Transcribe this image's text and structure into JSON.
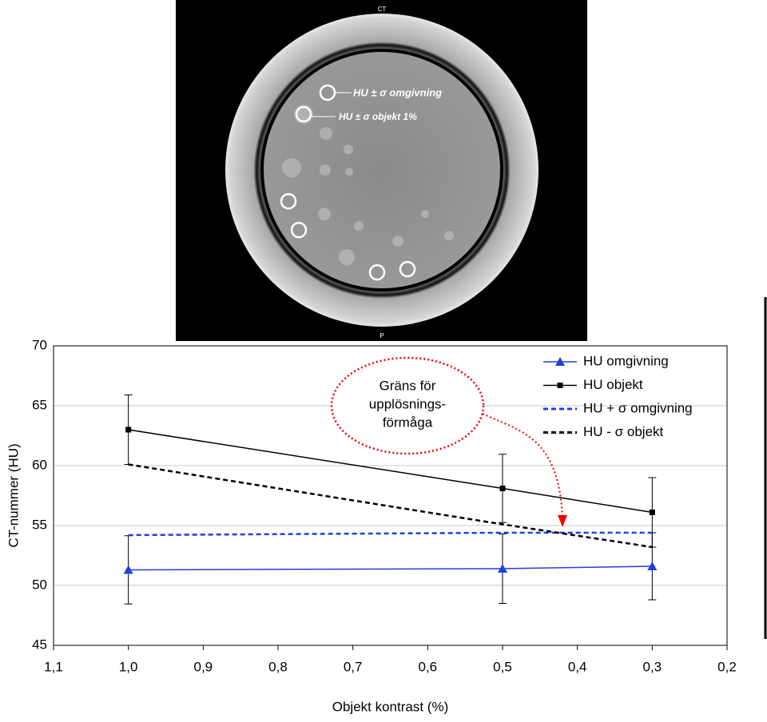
{
  "image": {
    "top_label": "CT",
    "bottom_label": "P",
    "label_surround": "HU ± σ omgivning",
    "label_object": "HU ± σ objekt 1%"
  },
  "chart_data": {
    "type": "line",
    "x_label": "Objekt kontrast (%)",
    "y_label": "CT-nummer (HU)",
    "annotation": [
      "Gräns för",
      "upplösnings-",
      "förmåga"
    ],
    "xlim": [
      1.1,
      0.2
    ],
    "xticks": [
      {
        "value": 1.1,
        "label": "1,1"
      },
      {
        "value": 1.0,
        "label": "1,0"
      },
      {
        "value": 0.9,
        "label": "0,9"
      },
      {
        "value": 0.8,
        "label": "0,8"
      },
      {
        "value": 0.7,
        "label": "0,7"
      },
      {
        "value": 0.6,
        "label": "0,6"
      },
      {
        "value": 0.5,
        "label": "0,5"
      },
      {
        "value": 0.4,
        "label": "0,4"
      },
      {
        "value": 0.3,
        "label": "0,3"
      },
      {
        "value": 0.2,
        "label": "0,2"
      }
    ],
    "ylim": [
      45,
      70
    ],
    "yticks": [
      45,
      50,
      55,
      60,
      65,
      70
    ],
    "grid": true,
    "legend": "top-right",
    "x": [
      1.0,
      0.5,
      0.3
    ],
    "series": [
      {
        "name": "HU omgivning",
        "color": "#1f3fe0",
        "marker": "triangle",
        "dashed": false,
        "values": [
          51.3,
          51.4,
          51.6
        ],
        "errors": [
          2.85,
          2.9,
          2.8
        ]
      },
      {
        "name": "HU objekt",
        "color": "#000000",
        "marker": "square",
        "dashed": false,
        "values": [
          63.0,
          58.1,
          56.1
        ],
        "errors": [
          2.9,
          2.85,
          2.9
        ]
      },
      {
        "name": "HU + σ  omgivning",
        "color": "#1f3fe0",
        "marker": null,
        "dashed": true,
        "values": [
          54.2,
          54.4,
          54.4
        ]
      },
      {
        "name": "HU - σ objekt",
        "color": "#000000",
        "marker": null,
        "dashed": true,
        "values": [
          60.1,
          55.1,
          53.2
        ]
      }
    ]
  }
}
